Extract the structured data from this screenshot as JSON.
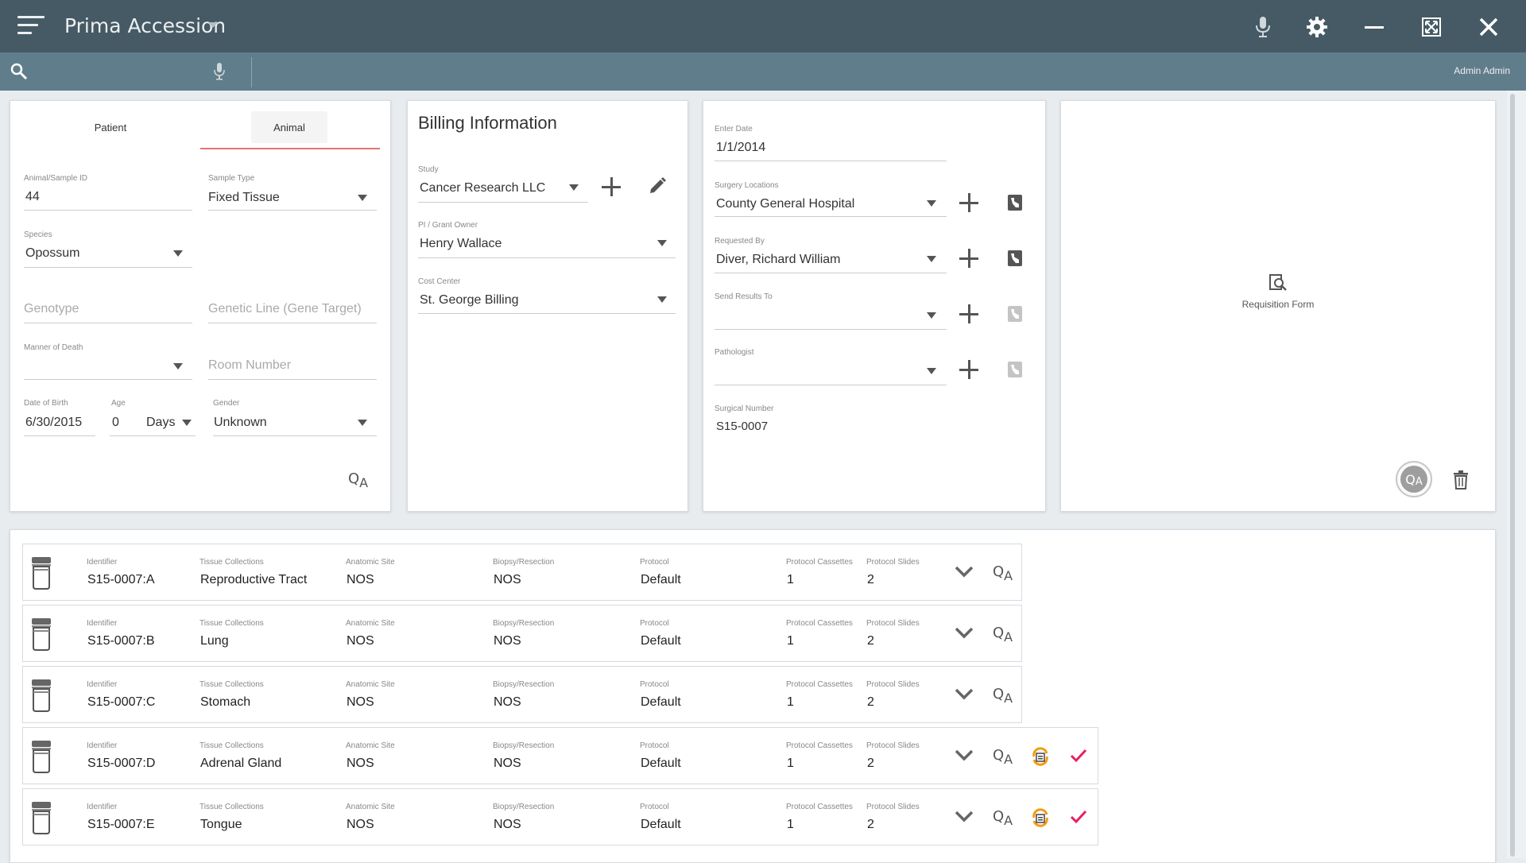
{
  "app": {
    "title": "Prima Accession",
    "user": "Admin Admin"
  },
  "search": {
    "placeholder": ""
  },
  "patient_card": {
    "tabs": [
      {
        "label": "Patient"
      },
      {
        "label": "Animal"
      }
    ],
    "active_tab": "Animal",
    "animal_id": {
      "label": "Animal/Sample ID",
      "value": "44"
    },
    "sample_type": {
      "label": "Sample Type",
      "value": "Fixed Tissue"
    },
    "species": {
      "label": "Species",
      "value": "Opossum"
    },
    "genotype": {
      "placeholder": "Genotype"
    },
    "genetic_line": {
      "placeholder": "Genetic Line (Gene Target)"
    },
    "manner_of_death": {
      "label": "Manner of Death",
      "value": ""
    },
    "room_number": {
      "placeholder": "Room Number"
    },
    "dob": {
      "label": "Date of Birth",
      "value": "6/30/2015"
    },
    "age": {
      "label": "Age",
      "value": "0",
      "unit": "Days"
    },
    "gender": {
      "label": "Gender",
      "value": "Unknown"
    }
  },
  "billing_card": {
    "title": "Billing Information",
    "study": {
      "label": "Study",
      "value": "Cancer Research LLC"
    },
    "pi": {
      "label": "PI / Grant Owner",
      "value": "Henry Wallace"
    },
    "cost_center": {
      "label": "Cost Center",
      "value": "St. George Billing"
    }
  },
  "case_card": {
    "enter_date": {
      "label": "Enter Date",
      "value": "1/1/2014"
    },
    "surgery_location": {
      "label": "Surgery Locations",
      "value": "County General Hospital"
    },
    "requested_by": {
      "label": "Requested By",
      "value": "Diver, Richard William"
    },
    "send_results_to": {
      "label": "Send Results To",
      "value": ""
    },
    "pathologist": {
      "label": "Pathologist",
      "value": ""
    },
    "surgical_number": {
      "label": "Surgical Number",
      "value": "S15-0007"
    }
  },
  "requisition": {
    "label": "Requisition Form"
  },
  "qa_icon": {
    "q": "Q",
    "a": "A"
  },
  "specimen_headers": {
    "identifier": "Identifier",
    "tissue": "Tissue Collections",
    "anatomic": "Anatomic Site",
    "biopsy": "Biopsy/Resection",
    "protocol": "Protocol",
    "cassettes": "Protocol Cassettes",
    "slides": "Protocol Slides"
  },
  "specimens": [
    {
      "id": "S15-0007:A",
      "tissue": "Reproductive Tract",
      "anatomic": "NOS",
      "biopsy": "NOS",
      "protocol": "Default",
      "cassettes": "1",
      "slides": "2",
      "printed": false
    },
    {
      "id": "S15-0007:B",
      "tissue": "Lung",
      "anatomic": "NOS",
      "biopsy": "NOS",
      "protocol": "Default",
      "cassettes": "1",
      "slides": "2",
      "printed": false
    },
    {
      "id": "S15-0007:C",
      "tissue": "Stomach",
      "anatomic": "NOS",
      "biopsy": "NOS",
      "protocol": "Default",
      "cassettes": "1",
      "slides": "2",
      "printed": false
    },
    {
      "id": "S15-0007:D",
      "tissue": "Adrenal Gland",
      "anatomic": "NOS",
      "biopsy": "NOS",
      "protocol": "Default",
      "cassettes": "1",
      "slides": "2",
      "printed": true
    },
    {
      "id": "S15-0007:E",
      "tissue": "Tongue",
      "anatomic": "NOS",
      "biopsy": "NOS",
      "protocol": "Default",
      "cassettes": "1",
      "slides": "2",
      "printed": true
    }
  ],
  "colors": {
    "titlebar": "#455a64",
    "searchbar": "#607d8b",
    "tab_underline": "#e57373",
    "check": "#e91e63",
    "print_icon": "#f39c12"
  }
}
